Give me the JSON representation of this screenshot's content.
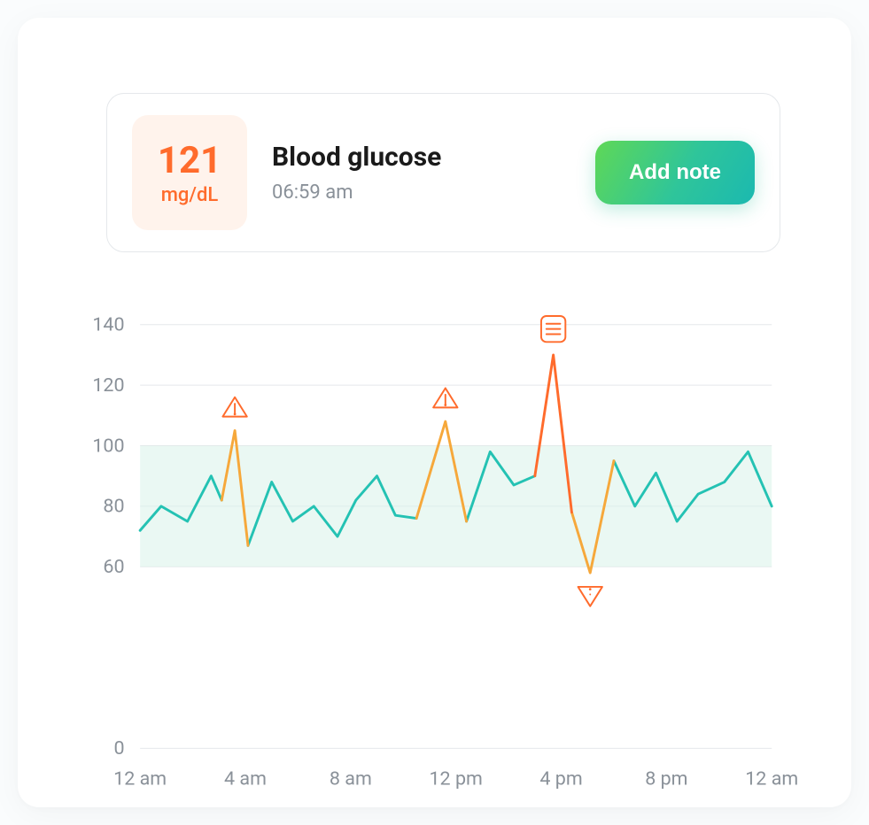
{
  "header": {
    "value": "121",
    "unit": "mg/dL",
    "title": "Blood glucose",
    "time": "06:59 am",
    "button_label": "Add note"
  },
  "colors": {
    "value_box_bg": "#fff3ec",
    "accent_orange": "#ff6b2c",
    "text_primary": "#1a1a1a",
    "text_muted": "#8a9199",
    "border": "#e5e8eb",
    "btn_grad_start": "#5fd856",
    "btn_grad_mid": "#2fc59a",
    "btn_grad_end": "#1bb9b0",
    "normal_band": "#d9f3e9",
    "line_normal": "#24c2b3",
    "line_warn": "#f6a83b",
    "line_alert": "#ff6b2c",
    "grid": "#e5e8eb",
    "card_bg": "#ffffff",
    "page_bg": "#fafcfd"
  },
  "chart": {
    "type": "line",
    "ylim": [
      0,
      140
    ],
    "ytick_step": 20,
    "yticks": [
      0,
      60,
      80,
      100,
      120,
      140
    ],
    "x_labels": [
      "12 am",
      "4 am",
      "8 am",
      "12 pm",
      "4 pm",
      "8 pm",
      "12 am"
    ],
    "x_count_hours": 24,
    "normal_range": [
      60,
      100
    ],
    "line_width": 3,
    "label_fontsize": 22,
    "data": [
      {
        "t": 0,
        "v": 72
      },
      {
        "t": 0.8,
        "v": 80
      },
      {
        "t": 1.8,
        "v": 75
      },
      {
        "t": 2.7,
        "v": 90
      },
      {
        "t": 3.1,
        "v": 82
      },
      {
        "t": 3.6,
        "v": 105,
        "marker": "warn"
      },
      {
        "t": 4.1,
        "v": 67
      },
      {
        "t": 5.0,
        "v": 88
      },
      {
        "t": 5.8,
        "v": 75
      },
      {
        "t": 6.6,
        "v": 80
      },
      {
        "t": 7.5,
        "v": 70
      },
      {
        "t": 8.2,
        "v": 82
      },
      {
        "t": 9.0,
        "v": 90
      },
      {
        "t": 9.7,
        "v": 77
      },
      {
        "t": 10.5,
        "v": 76
      },
      {
        "t": 11.6,
        "v": 108,
        "marker": "warn"
      },
      {
        "t": 12.4,
        "v": 75
      },
      {
        "t": 13.3,
        "v": 98
      },
      {
        "t": 14.2,
        "v": 87
      },
      {
        "t": 15.0,
        "v": 90
      },
      {
        "t": 15.7,
        "v": 130,
        "marker": "note"
      },
      {
        "t": 16.4,
        "v": 78
      },
      {
        "t": 17.1,
        "v": 58,
        "marker": "warn_low"
      },
      {
        "t": 18.0,
        "v": 95
      },
      {
        "t": 18.8,
        "v": 80
      },
      {
        "t": 19.6,
        "v": 91
      },
      {
        "t": 20.4,
        "v": 75
      },
      {
        "t": 21.2,
        "v": 84
      },
      {
        "t": 22.2,
        "v": 88
      },
      {
        "t": 23.1,
        "v": 98
      },
      {
        "t": 24.0,
        "v": 80
      }
    ]
  }
}
